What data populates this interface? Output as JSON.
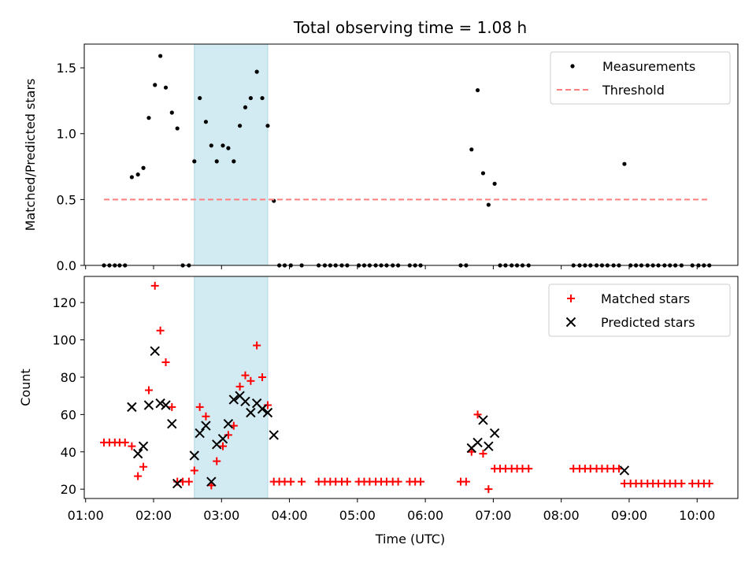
{
  "chart_data": {
    "title": "Total observing time = 1.08 h",
    "xlabel": "Time (UTC)",
    "x_ticks": [
      "01:00",
      "02:00",
      "03:00",
      "04:00",
      "05:00",
      "06:00",
      "07:00",
      "08:00",
      "09:00",
      "10:00"
    ],
    "x_tick_values": [
      1,
      2,
      3,
      4,
      5,
      6,
      7,
      8,
      9,
      10
    ],
    "xlim": [
      0.98,
      10.6
    ],
    "highlight_span": {
      "x_start": 2.6,
      "x_end": 3.68,
      "color": "#add8e6"
    },
    "panels": [
      {
        "type": "scatter",
        "ylabel": "Matched/Predicted stars",
        "ylim": [
          0,
          1.68
        ],
        "y_ticks": [
          0,
          0.5,
          1.0,
          1.5
        ],
        "y_tick_labels": [
          "0.0",
          "0.5",
          "1.0",
          "1.5"
        ],
        "legend_position": "upper right",
        "series": [
          {
            "name": "Measurements",
            "marker": "dot",
            "color": "#000000",
            "points": [
              [
                1.27,
                0
              ],
              [
                1.35,
                0
              ],
              [
                1.43,
                0
              ],
              [
                1.5,
                0
              ],
              [
                1.58,
                0
              ],
              [
                1.68,
                0.67
              ],
              [
                1.77,
                0.69
              ],
              [
                1.85,
                0.74
              ],
              [
                1.93,
                1.12
              ],
              [
                2.02,
                1.37
              ],
              [
                2.1,
                1.59
              ],
              [
                2.18,
                1.35
              ],
              [
                2.27,
                1.16
              ],
              [
                2.35,
                1.04
              ],
              [
                2.43,
                0
              ],
              [
                2.52,
                0
              ],
              [
                2.6,
                0.79
              ],
              [
                2.68,
                1.27
              ],
              [
                2.77,
                1.09
              ],
              [
                2.85,
                0.91
              ],
              [
                2.93,
                0.79
              ],
              [
                3.02,
                0.91
              ],
              [
                3.1,
                0.89
              ],
              [
                3.18,
                0.79
              ],
              [
                3.27,
                1.06
              ],
              [
                3.35,
                1.2
              ],
              [
                3.43,
                1.27
              ],
              [
                3.52,
                1.47
              ],
              [
                3.6,
                1.27
              ],
              [
                3.68,
                1.06
              ],
              [
                3.77,
                0.49
              ],
              [
                3.85,
                0
              ],
              [
                3.93,
                0
              ],
              [
                4.02,
                0
              ],
              [
                4.18,
                0
              ],
              [
                4.43,
                0
              ],
              [
                4.52,
                0
              ],
              [
                4.6,
                0
              ],
              [
                4.68,
                0
              ],
              [
                4.77,
                0
              ],
              [
                4.85,
                0
              ],
              [
                5.02,
                0
              ],
              [
                5.1,
                0
              ],
              [
                5.18,
                0
              ],
              [
                5.27,
                0
              ],
              [
                5.35,
                0
              ],
              [
                5.43,
                0
              ],
              [
                5.52,
                0
              ],
              [
                5.6,
                0
              ],
              [
                5.77,
                0
              ],
              [
                5.85,
                0
              ],
              [
                5.93,
                0
              ],
              [
                6.52,
                0
              ],
              [
                6.6,
                0
              ],
              [
                6.68,
                0.88
              ],
              [
                6.77,
                1.33
              ],
              [
                6.85,
                0.7
              ],
              [
                6.93,
                0.46
              ],
              [
                7.02,
                0.62
              ],
              [
                7.1,
                0
              ],
              [
                7.18,
                0
              ],
              [
                7.27,
                0
              ],
              [
                7.35,
                0
              ],
              [
                7.43,
                0
              ],
              [
                7.52,
                0
              ],
              [
                8.18,
                0
              ],
              [
                8.27,
                0
              ],
              [
                8.35,
                0
              ],
              [
                8.43,
                0
              ],
              [
                8.52,
                0
              ],
              [
                8.6,
                0
              ],
              [
                8.68,
                0
              ],
              [
                8.77,
                0
              ],
              [
                8.85,
                0
              ],
              [
                8.93,
                0.77
              ],
              [
                9.02,
                0
              ],
              [
                9.1,
                0
              ],
              [
                9.18,
                0
              ],
              [
                9.27,
                0
              ],
              [
                9.35,
                0
              ],
              [
                9.43,
                0
              ],
              [
                9.52,
                0
              ],
              [
                9.6,
                0
              ],
              [
                9.68,
                0
              ],
              [
                9.77,
                0
              ],
              [
                9.93,
                0
              ],
              [
                10.02,
                0
              ],
              [
                10.1,
                0
              ],
              [
                10.18,
                0
              ]
            ]
          },
          {
            "name": "Threshold",
            "marker": "dashed-line",
            "color": "#ff7f7f",
            "points": [
              [
                1.27,
                0.5
              ],
              [
                10.18,
                0.5
              ]
            ]
          }
        ]
      },
      {
        "type": "scatter",
        "ylabel": "Count",
        "ylim": [
          15,
          134
        ],
        "y_ticks": [
          20,
          40,
          60,
          80,
          100,
          120
        ],
        "y_tick_labels": [
          "20",
          "40",
          "60",
          "80",
          "100",
          "120"
        ],
        "legend_position": "upper right",
        "series": [
          {
            "name": "Matched stars",
            "marker": "plus",
            "color": "#ff0000",
            "points": [
              [
                1.27,
                45
              ],
              [
                1.35,
                45
              ],
              [
                1.43,
                45
              ],
              [
                1.5,
                45
              ],
              [
                1.58,
                45
              ],
              [
                1.68,
                43
              ],
              [
                1.77,
                27
              ],
              [
                1.85,
                32
              ],
              [
                1.93,
                73
              ],
              [
                2.02,
                129
              ],
              [
                2.1,
                105
              ],
              [
                2.18,
                88
              ],
              [
                2.27,
                64
              ],
              [
                2.35,
                24
              ],
              [
                2.43,
                24
              ],
              [
                2.52,
                24
              ],
              [
                2.6,
                30
              ],
              [
                2.68,
                64
              ],
              [
                2.77,
                59
              ],
              [
                2.85,
                22
              ],
              [
                2.93,
                35
              ],
              [
                3.02,
                43
              ],
              [
                3.1,
                49
              ],
              [
                3.18,
                54
              ],
              [
                3.27,
                75
              ],
              [
                3.35,
                81
              ],
              [
                3.43,
                78
              ],
              [
                3.52,
                97
              ],
              [
                3.6,
                80
              ],
              [
                3.68,
                65
              ],
              [
                3.77,
                24
              ],
              [
                3.85,
                24
              ],
              [
                3.93,
                24
              ],
              [
                4.02,
                24
              ],
              [
                4.18,
                24
              ],
              [
                4.43,
                24
              ],
              [
                4.52,
                24
              ],
              [
                4.6,
                24
              ],
              [
                4.68,
                24
              ],
              [
                4.77,
                24
              ],
              [
                4.85,
                24
              ],
              [
                5.02,
                24
              ],
              [
                5.1,
                24
              ],
              [
                5.18,
                24
              ],
              [
                5.27,
                24
              ],
              [
                5.35,
                24
              ],
              [
                5.43,
                24
              ],
              [
                5.52,
                24
              ],
              [
                5.6,
                24
              ],
              [
                5.77,
                24
              ],
              [
                5.85,
                24
              ],
              [
                5.93,
                24
              ],
              [
                6.52,
                24
              ],
              [
                6.6,
                24
              ],
              [
                6.68,
                40
              ],
              [
                6.77,
                60
              ],
              [
                6.85,
                39
              ],
              [
                6.93,
                20
              ],
              [
                7.02,
                31
              ],
              [
                7.1,
                31
              ],
              [
                7.18,
                31
              ],
              [
                7.27,
                31
              ],
              [
                7.35,
                31
              ],
              [
                7.43,
                31
              ],
              [
                7.52,
                31
              ],
              [
                8.18,
                31
              ],
              [
                8.27,
                31
              ],
              [
                8.35,
                31
              ],
              [
                8.43,
                31
              ],
              [
                8.52,
                31
              ],
              [
                8.6,
                31
              ],
              [
                8.68,
                31
              ],
              [
                8.77,
                31
              ],
              [
                8.85,
                31
              ],
              [
                8.93,
                23
              ],
              [
                9.02,
                23
              ],
              [
                9.1,
                23
              ],
              [
                9.18,
                23
              ],
              [
                9.27,
                23
              ],
              [
                9.35,
                23
              ],
              [
                9.43,
                23
              ],
              [
                9.52,
                23
              ],
              [
                9.6,
                23
              ],
              [
                9.68,
                23
              ],
              [
                9.77,
                23
              ],
              [
                9.93,
                23
              ],
              [
                10.02,
                23
              ],
              [
                10.1,
                23
              ],
              [
                10.18,
                23
              ]
            ]
          },
          {
            "name": "Predicted stars",
            "marker": "x",
            "color": "#000000",
            "points": [
              [
                1.68,
                64
              ],
              [
                1.77,
                39
              ],
              [
                1.85,
                43
              ],
              [
                1.93,
                65
              ],
              [
                2.02,
                94
              ],
              [
                2.1,
                66
              ],
              [
                2.18,
                65
              ],
              [
                2.27,
                55
              ],
              [
                2.35,
                23
              ],
              [
                2.6,
                38
              ],
              [
                2.68,
                50
              ],
              [
                2.77,
                54
              ],
              [
                2.85,
                24
              ],
              [
                2.93,
                44
              ],
              [
                3.02,
                47
              ],
              [
                3.1,
                55
              ],
              [
                3.18,
                68
              ],
              [
                3.27,
                70
              ],
              [
                3.35,
                67
              ],
              [
                3.43,
                61
              ],
              [
                3.52,
                66
              ],
              [
                3.6,
                63
              ],
              [
                3.68,
                61
              ],
              [
                3.77,
                49
              ],
              [
                6.68,
                42
              ],
              [
                6.77,
                45
              ],
              [
                6.85,
                57
              ],
              [
                6.93,
                43
              ],
              [
                7.02,
                50
              ],
              [
                8.93,
                30
              ]
            ]
          }
        ]
      }
    ]
  }
}
